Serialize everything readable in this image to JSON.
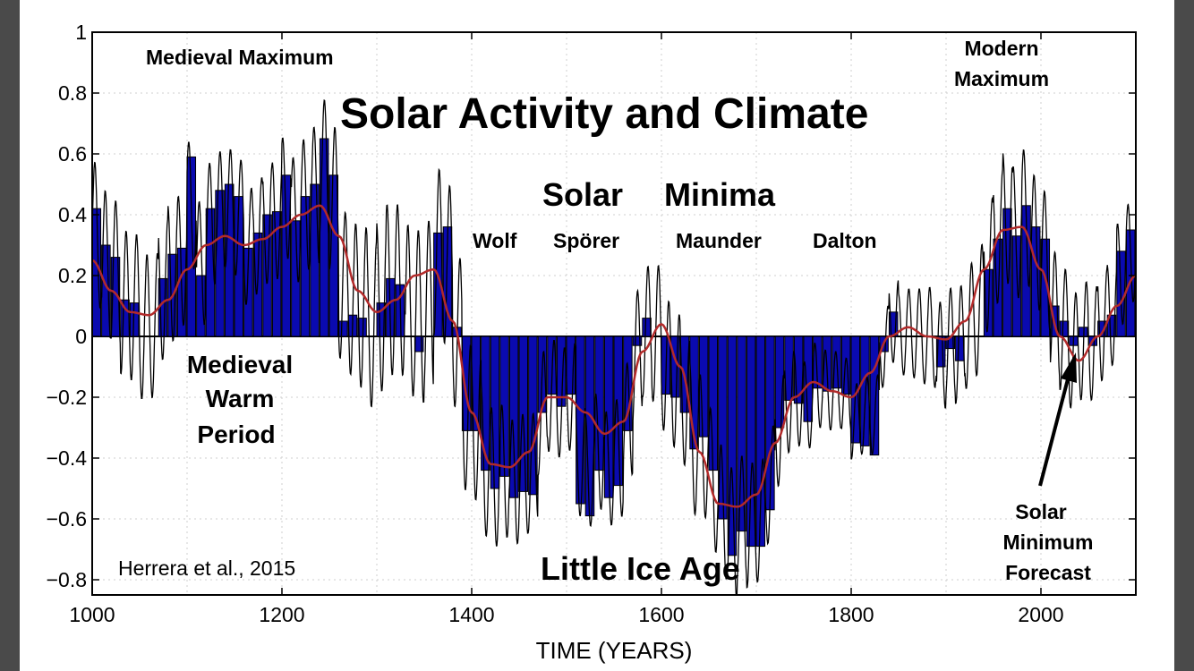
{
  "chart_data": {
    "type": "bar",
    "title": "Solar Activity and Climate",
    "xlabel": "TIME (YEARS)",
    "ylabel": "",
    "xlim": [
      1000,
      2100
    ],
    "ylim": [
      -0.85,
      1.0
    ],
    "grid": true,
    "xticks": [
      1000,
      1200,
      1400,
      1600,
      1800,
      2000
    ],
    "yticks": [
      -0.8,
      -0.6,
      -0.4,
      -0.2,
      0,
      0.2,
      0.4,
      0.6,
      0.8,
      1
    ],
    "bars": {
      "width_years": 9,
      "x": [
        1000,
        1010,
        1020,
        1030,
        1040,
        1050,
        1060,
        1070,
        1080,
        1090,
        1100,
        1110,
        1120,
        1130,
        1140,
        1150,
        1160,
        1170,
        1180,
        1190,
        1200,
        1210,
        1220,
        1230,
        1240,
        1250,
        1260,
        1270,
        1280,
        1290,
        1300,
        1310,
        1320,
        1330,
        1340,
        1350,
        1360,
        1370,
        1380,
        1390,
        1400,
        1410,
        1420,
        1430,
        1440,
        1450,
        1460,
        1470,
        1480,
        1490,
        1500,
        1510,
        1520,
        1530,
        1540,
        1550,
        1560,
        1570,
        1580,
        1590,
        1600,
        1610,
        1620,
        1630,
        1640,
        1650,
        1660,
        1670,
        1680,
        1690,
        1700,
        1710,
        1720,
        1730,
        1740,
        1750,
        1760,
        1770,
        1780,
        1790,
        1800,
        1810,
        1820,
        1830,
        1840,
        1850,
        1860,
        1870,
        1880,
        1890,
        1900,
        1910,
        1920,
        1930,
        1940,
        1950,
        1960,
        1970,
        1980,
        1990,
        2000,
        2010,
        2020,
        2030,
        2040,
        2050,
        2060,
        2070,
        2080,
        2090
      ],
      "values": [
        0.42,
        0.3,
        0.26,
        0.12,
        0.11,
        0.0,
        0.0,
        0.19,
        0.27,
        0.29,
        0.59,
        0.2,
        0.42,
        0.48,
        0.5,
        0.46,
        0.29,
        0.34,
        0.4,
        0.41,
        0.53,
        0.38,
        0.46,
        0.5,
        0.65,
        0.53,
        0.05,
        0.07,
        0.06,
        0.0,
        0.11,
        0.19,
        0.17,
        0.0,
        -0.05,
        0.0,
        0.34,
        0.36,
        0.03,
        -0.31,
        -0.31,
        -0.44,
        -0.5,
        -0.46,
        -0.53,
        -0.51,
        -0.52,
        -0.25,
        -0.19,
        -0.23,
        -0.19,
        -0.55,
        -0.59,
        -0.44,
        -0.53,
        -0.49,
        -0.31,
        -0.03,
        0.06,
        0.0,
        -0.19,
        -0.2,
        -0.25,
        -0.37,
        -0.33,
        -0.44,
        -0.6,
        -0.72,
        -0.64,
        -0.69,
        -0.69,
        -0.57,
        -0.3,
        -0.21,
        -0.22,
        -0.28,
        -0.17,
        -0.18,
        -0.17,
        -0.19,
        -0.35,
        -0.36,
        -0.39,
        -0.05,
        0.08,
        0.0,
        0.0,
        0.0,
        0.0,
        -0.1,
        -0.04,
        -0.08,
        0.0,
        0.0,
        0.22,
        0.32,
        0.42,
        0.33,
        0.43,
        0.36,
        0.32,
        0.1,
        0.05,
        -0.03,
        0.03,
        -0.03,
        0.05,
        0.07,
        0.28,
        0.35
      ]
    },
    "smooth_line": {
      "color": "#b22a2a",
      "x": [
        1000,
        1020,
        1040,
        1060,
        1080,
        1100,
        1120,
        1140,
        1160,
        1180,
        1200,
        1220,
        1240,
        1260,
        1280,
        1300,
        1320,
        1340,
        1360,
        1380,
        1400,
        1420,
        1440,
        1460,
        1480,
        1500,
        1520,
        1540,
        1560,
        1580,
        1600,
        1620,
        1640,
        1660,
        1680,
        1700,
        1720,
        1740,
        1760,
        1780,
        1800,
        1820,
        1840,
        1860,
        1880,
        1900,
        1920,
        1940,
        1960,
        1980,
        2000,
        2020,
        2040,
        2060,
        2080,
        2100
      ],
      "y": [
        0.25,
        0.15,
        0.08,
        0.07,
        0.12,
        0.22,
        0.3,
        0.33,
        0.3,
        0.32,
        0.36,
        0.4,
        0.43,
        0.33,
        0.15,
        0.08,
        0.12,
        0.2,
        0.22,
        0.05,
        -0.25,
        -0.42,
        -0.43,
        -0.38,
        -0.2,
        -0.2,
        -0.25,
        -0.32,
        -0.28,
        -0.05,
        0.04,
        -0.1,
        -0.38,
        -0.55,
        -0.56,
        -0.52,
        -0.35,
        -0.2,
        -0.15,
        -0.18,
        -0.2,
        -0.12,
        0.0,
        0.03,
        0.0,
        -0.01,
        0.05,
        0.22,
        0.35,
        0.36,
        0.22,
        0.0,
        -0.08,
        0.0,
        0.1,
        0.2
      ]
    },
    "oscillation": {
      "color": "#000000",
      "period_years": 11,
      "amplitude": 0.24
    },
    "annotations": {
      "medieval_maximum": "Medieval Maximum",
      "modern_maximum_1": "Modern",
      "modern_maximum_2": "Maximum",
      "solar": "Solar",
      "minima": "Minima",
      "wolf": "Wolf",
      "sporer": "Spörer",
      "maunder": "Maunder",
      "dalton": "Dalton",
      "medieval_warm_1": "Medieval",
      "medieval_warm_2": "Warm",
      "medieval_warm_3": "Period",
      "little_ice_age": "Little Ice Age",
      "citation": "Herrera et al., 2015",
      "forecast_1": "Solar",
      "forecast_2": "Minimum",
      "forecast_3": "Forecast"
    },
    "colors": {
      "bar_fill": "#0a0ab0",
      "bar_stroke": "#000000",
      "grid": "#cfcfcf"
    }
  }
}
